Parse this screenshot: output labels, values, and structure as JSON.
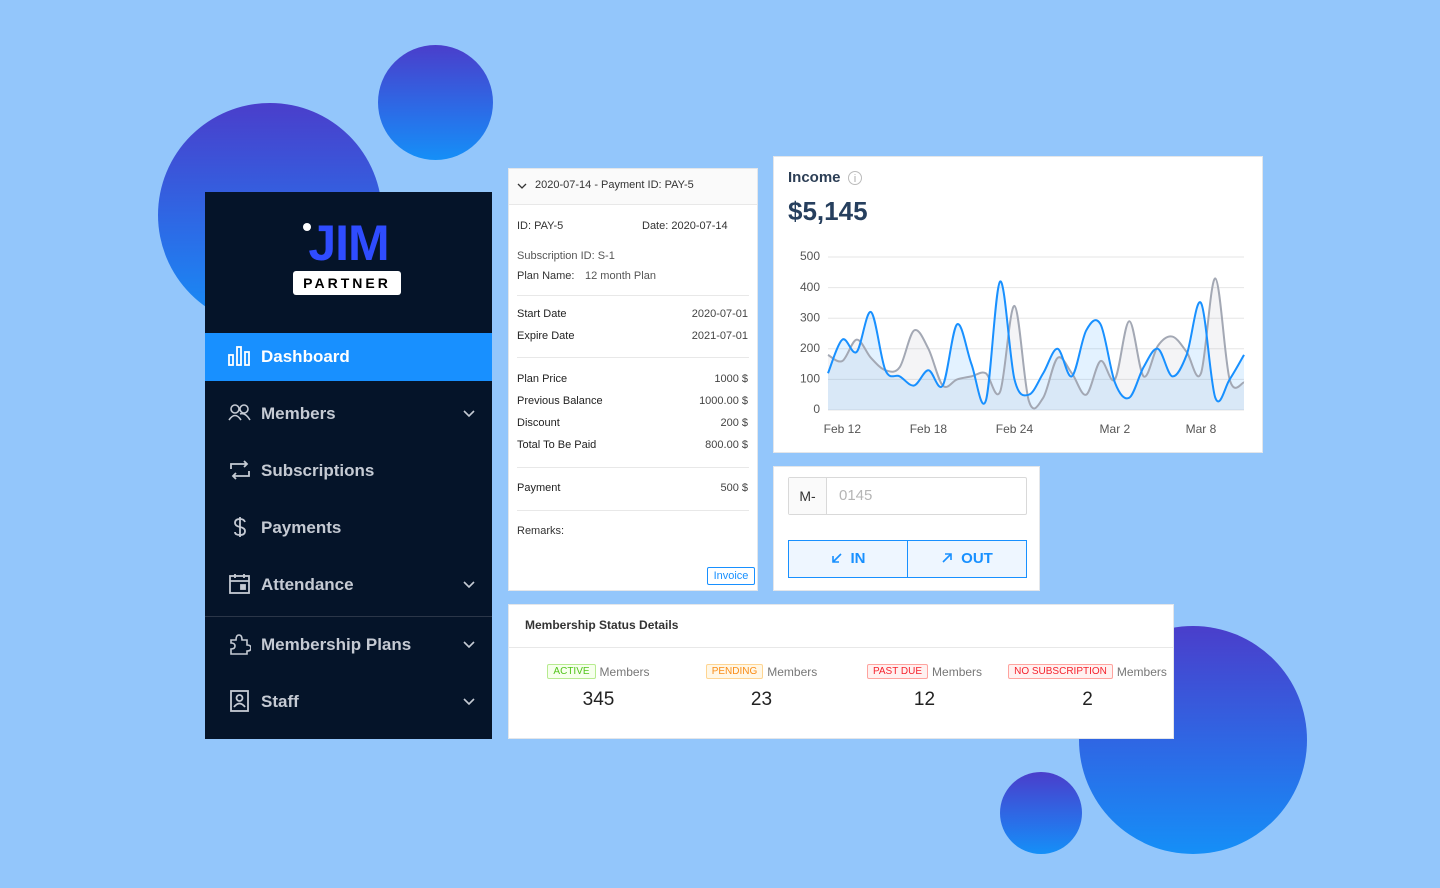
{
  "logo": {
    "title": "JIM",
    "subtitle": "PARTNER"
  },
  "sidebar": {
    "items": [
      "Dashboard",
      "Members",
      "Subscriptions",
      "Payments",
      "Attendance",
      "Membership Plans",
      "Staff"
    ]
  },
  "payment": {
    "header": "2020-07-14 - Payment ID: PAY-5",
    "id": "ID: PAY-5",
    "date": "Date: 2020-07-14",
    "subscription": "Subscription ID: S-1",
    "plan_label": "Plan Name:",
    "plan_value": "12 month Plan",
    "rows": [
      [
        "Start Date",
        "2020-07-01"
      ],
      [
        "Expire Date",
        "2021-07-01"
      ],
      [
        "Plan Price",
        "1000 $"
      ],
      [
        "Previous Balance",
        "1000.00 $"
      ],
      [
        "Discount",
        "200 $"
      ],
      [
        "Total To Be Paid",
        "800.00 $"
      ],
      [
        "Payment",
        "500 $"
      ]
    ],
    "remarks": "Remarks:",
    "button": "Invoice"
  },
  "chart_data": {
    "type": "line",
    "title": "Income",
    "subtitle": "$5,145",
    "categories": [
      null,
      "Feb 12",
      null,
      null,
      null,
      null,
      null,
      "Feb 18",
      null,
      null,
      null,
      null,
      null,
      "Feb 24",
      null,
      null,
      null,
      null,
      null,
      null,
      "Mar 2",
      null,
      null,
      null,
      null,
      null,
      "Mar 8",
      null,
      null,
      null
    ],
    "series": [
      {
        "color": "#1890ff",
        "values": [
          120,
          230,
          190,
          320,
          130,
          110,
          80,
          130,
          80,
          280,
          150,
          30,
          420,
          100,
          50,
          120,
          200,
          110,
          260,
          280,
          90,
          40,
          140,
          200,
          110,
          180,
          350,
          40,
          100,
          180
        ]
      },
      {
        "color": "#a3a8b4",
        "values": [
          180,
          160,
          230,
          170,
          130,
          140,
          260,
          200,
          80,
          100,
          110,
          120,
          60,
          340,
          30,
          40,
          170,
          120,
          50,
          160,
          100,
          290,
          110,
          210,
          240,
          190,
          120,
          430,
          100,
          90
        ]
      }
    ],
    "ylim": [
      0,
      500
    ],
    "yticks": [
      0,
      100,
      200,
      300,
      400,
      500
    ],
    "grid": true,
    "area": true
  },
  "checkin": {
    "prefix": "M-",
    "placeholder": "0145",
    "buttons": [
      "IN",
      "OUT"
    ]
  },
  "membership": {
    "title": "Membership Status Details",
    "items": [
      {
        "badge": "ACTIVE",
        "label": "Members",
        "count": "345"
      },
      {
        "badge": "PENDING",
        "label": "Members",
        "count": "23"
      },
      {
        "badge": "PAST DUE",
        "label": "Members",
        "count": "12"
      },
      {
        "badge": "NO SUBSCRIPTION",
        "label": "Members",
        "count": "2"
      }
    ]
  }
}
